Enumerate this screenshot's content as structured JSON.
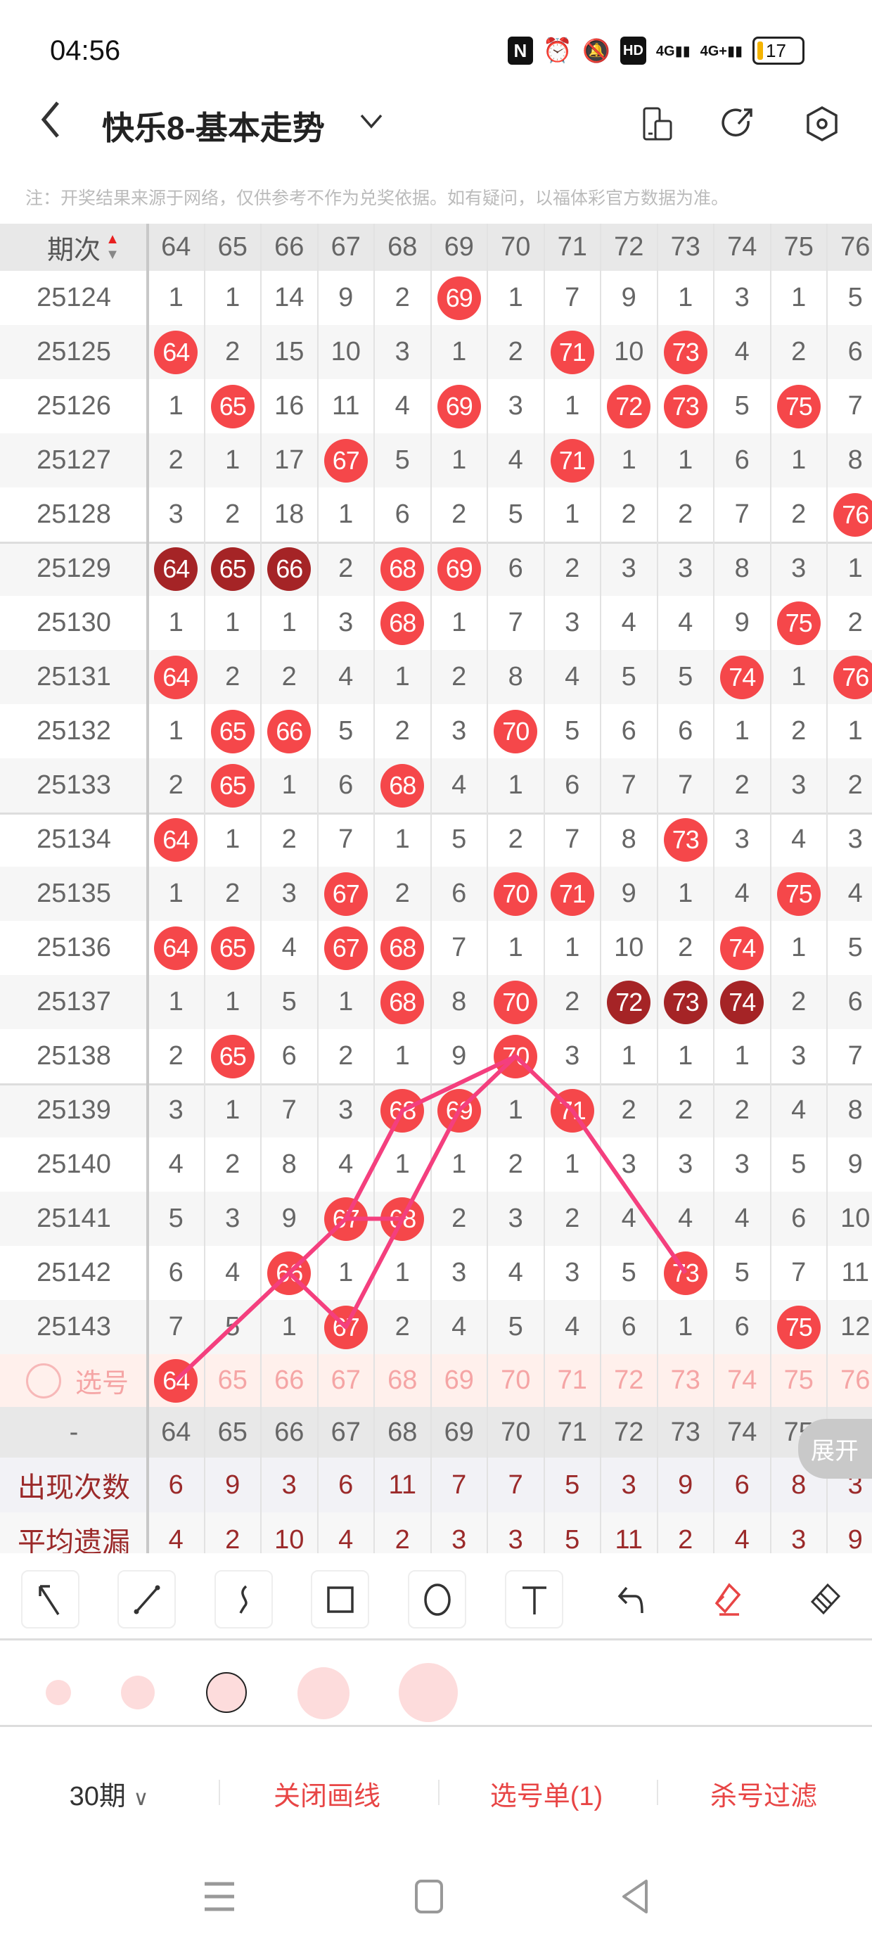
{
  "status_bar": {
    "time": "04:56",
    "icons": [
      "nfc-icon",
      "alarm-icon",
      "mute-bell-icon",
      "hd-icon",
      "signal-4g-icon",
      "signal-4g-plus-icon"
    ],
    "battery": "17"
  },
  "header": {
    "title": "快乐8-基本走势",
    "icons": [
      "back-icon",
      "chevron-down-icon",
      "device-icon",
      "share-icon",
      "settings-icon"
    ]
  },
  "note": "注：开奖结果来源于网络，仅供参考不作为兑奖依据。如有疑问，以福体彩官方数据为准。",
  "table": {
    "period_header": "期次",
    "columns": [
      "64",
      "65",
      "66",
      "67",
      "68",
      "69",
      "70",
      "71",
      "72",
      "73",
      "74",
      "75",
      "76"
    ],
    "rows": [
      {
        "period": "25124",
        "cells": [
          1,
          1,
          14,
          9,
          2,
          null,
          1,
          7,
          9,
          1,
          3,
          1,
          5
        ]
      },
      {
        "period": "25125",
        "cells": [
          null,
          2,
          15,
          10,
          3,
          1,
          2,
          null,
          10,
          null,
          4,
          2,
          6
        ]
      },
      {
        "period": "25126",
        "cells": [
          1,
          null,
          16,
          11,
          4,
          null,
          3,
          1,
          null,
          null,
          5,
          null,
          7
        ]
      },
      {
        "period": "25127",
        "cells": [
          2,
          1,
          17,
          null,
          5,
          1,
          4,
          null,
          1,
          1,
          6,
          1,
          8
        ]
      },
      {
        "period": "25128",
        "cells": [
          3,
          2,
          18,
          1,
          6,
          2,
          5,
          1,
          2,
          2,
          7,
          2,
          null
        ]
      },
      {
        "period": "25129",
        "cells": [
          null,
          null,
          null,
          2,
          null,
          null,
          6,
          2,
          3,
          3,
          8,
          3,
          1
        ]
      },
      {
        "period": "25130",
        "cells": [
          1,
          1,
          1,
          3,
          null,
          1,
          7,
          3,
          4,
          4,
          9,
          null,
          2
        ]
      },
      {
        "period": "25131",
        "cells": [
          null,
          2,
          2,
          4,
          1,
          2,
          8,
          4,
          5,
          5,
          null,
          1,
          null
        ]
      },
      {
        "period": "25132",
        "cells": [
          1,
          null,
          null,
          5,
          2,
          3,
          null,
          5,
          6,
          6,
          1,
          2,
          1
        ]
      },
      {
        "period": "25133",
        "cells": [
          2,
          null,
          1,
          6,
          null,
          4,
          1,
          6,
          7,
          7,
          2,
          3,
          2
        ]
      },
      {
        "period": "25134",
        "cells": [
          null,
          1,
          2,
          7,
          1,
          5,
          2,
          7,
          8,
          null,
          3,
          4,
          3
        ]
      },
      {
        "period": "25135",
        "cells": [
          1,
          2,
          3,
          null,
          2,
          6,
          null,
          null,
          9,
          1,
          4,
          null,
          4
        ]
      },
      {
        "period": "25136",
        "cells": [
          null,
          null,
          4,
          null,
          null,
          7,
          1,
          1,
          10,
          2,
          null,
          1,
          5
        ]
      },
      {
        "period": "25137",
        "cells": [
          1,
          1,
          5,
          1,
          null,
          8,
          null,
          2,
          null,
          null,
          null,
          2,
          6
        ]
      },
      {
        "period": "25138",
        "cells": [
          2,
          null,
          6,
          2,
          1,
          9,
          null,
          3,
          1,
          1,
          1,
          3,
          7
        ]
      },
      {
        "period": "25139",
        "cells": [
          3,
          1,
          7,
          3,
          null,
          null,
          1,
          null,
          2,
          2,
          2,
          4,
          8
        ]
      },
      {
        "period": "25140",
        "cells": [
          4,
          2,
          8,
          4,
          1,
          1,
          2,
          1,
          3,
          3,
          3,
          5,
          9
        ]
      },
      {
        "period": "25141",
        "cells": [
          5,
          3,
          9,
          null,
          null,
          2,
          3,
          2,
          4,
          4,
          4,
          6,
          10
        ]
      },
      {
        "period": "25142",
        "cells": [
          6,
          4,
          null,
          1,
          1,
          3,
          4,
          3,
          5,
          null,
          5,
          7,
          11
        ]
      },
      {
        "period": "25143",
        "cells": [
          7,
          5,
          1,
          null,
          2,
          4,
          5,
          4,
          6,
          1,
          6,
          null,
          12
        ]
      }
    ],
    "select_row": {
      "label": "选号",
      "selected": [
        "64"
      ]
    },
    "dash_row": {
      "label": "-"
    },
    "stats": [
      {
        "label": "出现次数",
        "values": [
          6,
          9,
          3,
          6,
          11,
          7,
          7,
          5,
          3,
          9,
          6,
          8,
          3
        ]
      },
      {
        "label": "平均遗漏",
        "values": [
          4,
          2,
          10,
          4,
          2,
          3,
          3,
          5,
          11,
          2,
          4,
          3,
          9
        ]
      }
    ],
    "expand_label": "展开"
  },
  "drawn_lines": [
    [
      [
        "选号",
        "64"
      ],
      [
        "25142",
        "66"
      ],
      [
        "25141",
        "67"
      ],
      [
        "25141",
        "68"
      ]
    ],
    [
      [
        "25141",
        "67"
      ],
      [
        "25139",
        "68"
      ],
      [
        "25138",
        "70"
      ],
      [
        "25139",
        "71"
      ],
      [
        "25142",
        "73"
      ]
    ],
    [
      [
        "25142",
        "66"
      ],
      [
        "25143",
        "67"
      ],
      [
        "25139",
        "69"
      ],
      [
        "25138",
        "70"
      ]
    ]
  ],
  "drawing_tools": [
    "select-arrow-icon",
    "line-icon",
    "curve-icon",
    "rectangle-icon",
    "circle-icon",
    "text-icon",
    "undo-icon",
    "eraser-icon",
    "clear-icon"
  ],
  "brush_sizes": {
    "count": 5,
    "selected_index": 2
  },
  "bottom_bar": {
    "periods": "30期",
    "close_drawing": "关闭画线",
    "selection_list": "选号单(1)",
    "kill_filter": "杀号过滤"
  },
  "colors": {
    "accent": "#f5474a",
    "dark_ball": "#a52426",
    "line": "#f43f7e",
    "stat_text": "#9b2a2a"
  }
}
